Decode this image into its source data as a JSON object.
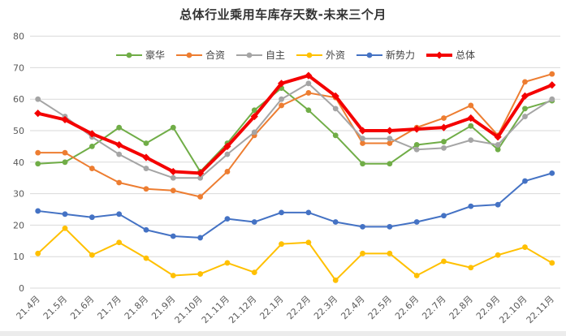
{
  "title": "总体行业乘用车库存天数-未来三个月",
  "chart_data": {
    "type": "line",
    "title": "总体行业乘用车库存天数-未来三个月",
    "xlabel": "",
    "ylabel": "",
    "ylim": [
      0,
      80
    ],
    "y_ticks": [
      0,
      10,
      20,
      30,
      40,
      50,
      60,
      70,
      80
    ],
    "grid": true,
    "legend_position": "top",
    "categories": [
      "21.4月",
      "21.5月",
      "21.6月",
      "21.7月",
      "21.8月",
      "21.9月",
      "21.10月",
      "21.11月",
      "21.12月",
      "22.1月",
      "22.2月",
      "22.3月",
      "22.4月",
      "22.5月",
      "22.6月",
      "22.7月",
      "22.8月",
      "22.9月",
      "22.10月",
      "22.11月"
    ],
    "series": [
      {
        "name": "豪华",
        "key": "luxury",
        "color": "#70AD47",
        "marker": "circle",
        "line_width": 2,
        "values": [
          39.5,
          40,
          45,
          51,
          46,
          51,
          37,
          46,
          56.5,
          63.5,
          56.5,
          48.5,
          39.5,
          39.5,
          45.5,
          46.5,
          51.5,
          44,
          57,
          59.5
        ]
      },
      {
        "name": "合资",
        "key": "joint-venture",
        "color": "#ED7D31",
        "marker": "circle",
        "line_width": 2,
        "values": [
          43,
          43,
          38,
          33.5,
          31.5,
          31,
          29,
          37,
          48.5,
          58,
          62,
          60.5,
          46,
          46,
          51,
          54,
          58,
          48.5,
          65.5,
          68
        ]
      },
      {
        "name": "自主",
        "key": "domestic",
        "color": "#A5A5A5",
        "marker": "circle",
        "line_width": 2,
        "values": [
          60,
          54.5,
          48,
          42.5,
          38,
          35,
          35,
          42.5,
          49.5,
          60,
          65,
          57,
          47.5,
          47.5,
          44,
          44.5,
          47,
          45.5,
          54.5,
          60
        ]
      },
      {
        "name": "外资",
        "key": "foreign",
        "color": "#FFC000",
        "marker": "circle",
        "line_width": 2,
        "values": [
          11,
          19,
          10.5,
          14.5,
          9.5,
          4,
          4.5,
          8,
          5,
          14,
          14.5,
          2.5,
          11,
          11,
          4,
          8.5,
          6.5,
          10.5,
          13,
          8
        ]
      },
      {
        "name": "新势力",
        "key": "new-force",
        "color": "#4472C4",
        "marker": "circle",
        "line_width": 2,
        "values": [
          24.5,
          23.5,
          22.5,
          23.5,
          18.5,
          16.5,
          16,
          22,
          21,
          24,
          24,
          21,
          19.5,
          19.5,
          21,
          23,
          26,
          26.5,
          34,
          36.5
        ]
      },
      {
        "name": "总体",
        "key": "overall",
        "color": "#F40000",
        "marker": "diamond",
        "line_width": 4,
        "values": [
          55.5,
          53.5,
          49,
          45.5,
          41.5,
          37,
          36.5,
          45,
          54.5,
          65,
          67.5,
          61,
          50,
          50,
          50.5,
          51,
          54,
          48,
          61,
          64.5
        ]
      }
    ],
    "gridline_color": "#D9D9D9",
    "tick_label_color": "#595959"
  }
}
